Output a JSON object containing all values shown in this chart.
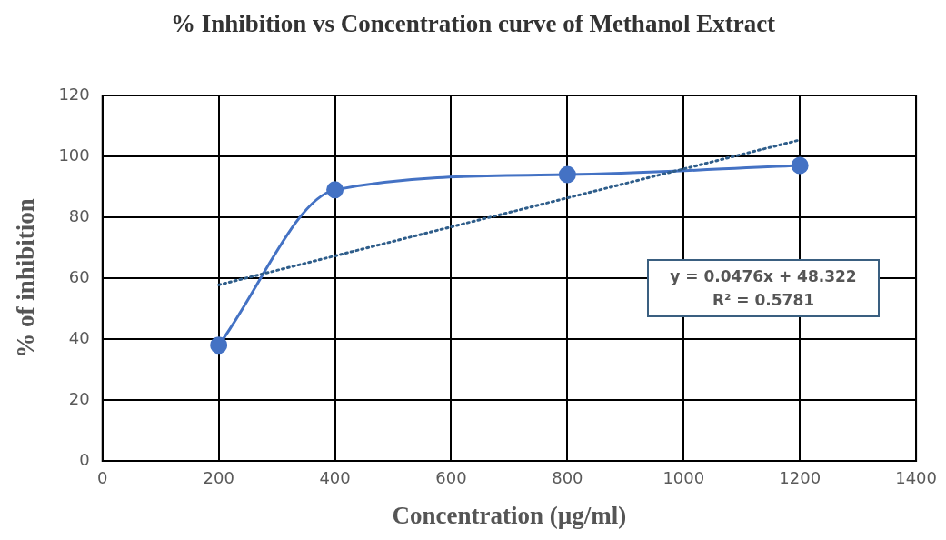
{
  "chart_data": {
    "type": "line",
    "title": "% Inhibition vs Concentration curve of Methanol Extract",
    "xlabel": "Concentration (µg/ml)",
    "ylabel": "% of inhibition",
    "x": [
      200,
      400,
      800,
      1200
    ],
    "series": [
      {
        "color": "#4472c4",
        "values": [
          38,
          89,
          94,
          97
        ],
        "marker": "circle",
        "line_style": "solid"
      },
      {
        "type": "line",
        "x": [
          200,
          1200
        ],
        "color": "#2e5d8a",
        "values": [
          57.8,
          105.4
        ],
        "marker": "none",
        "line_style": "dotted"
      }
    ],
    "xlim": [
      0,
      1400
    ],
    "xticks": [
      0,
      200,
      400,
      600,
      800,
      1000,
      1200,
      1400
    ],
    "ylim": [
      0,
      120
    ],
    "yticks": [
      0,
      20,
      40,
      60,
      80,
      100,
      120
    ],
    "grid": true,
    "legend": false,
    "annotations": [
      "y = 0.0476x + 48.322",
      "R² = 0.5781"
    ]
  }
}
